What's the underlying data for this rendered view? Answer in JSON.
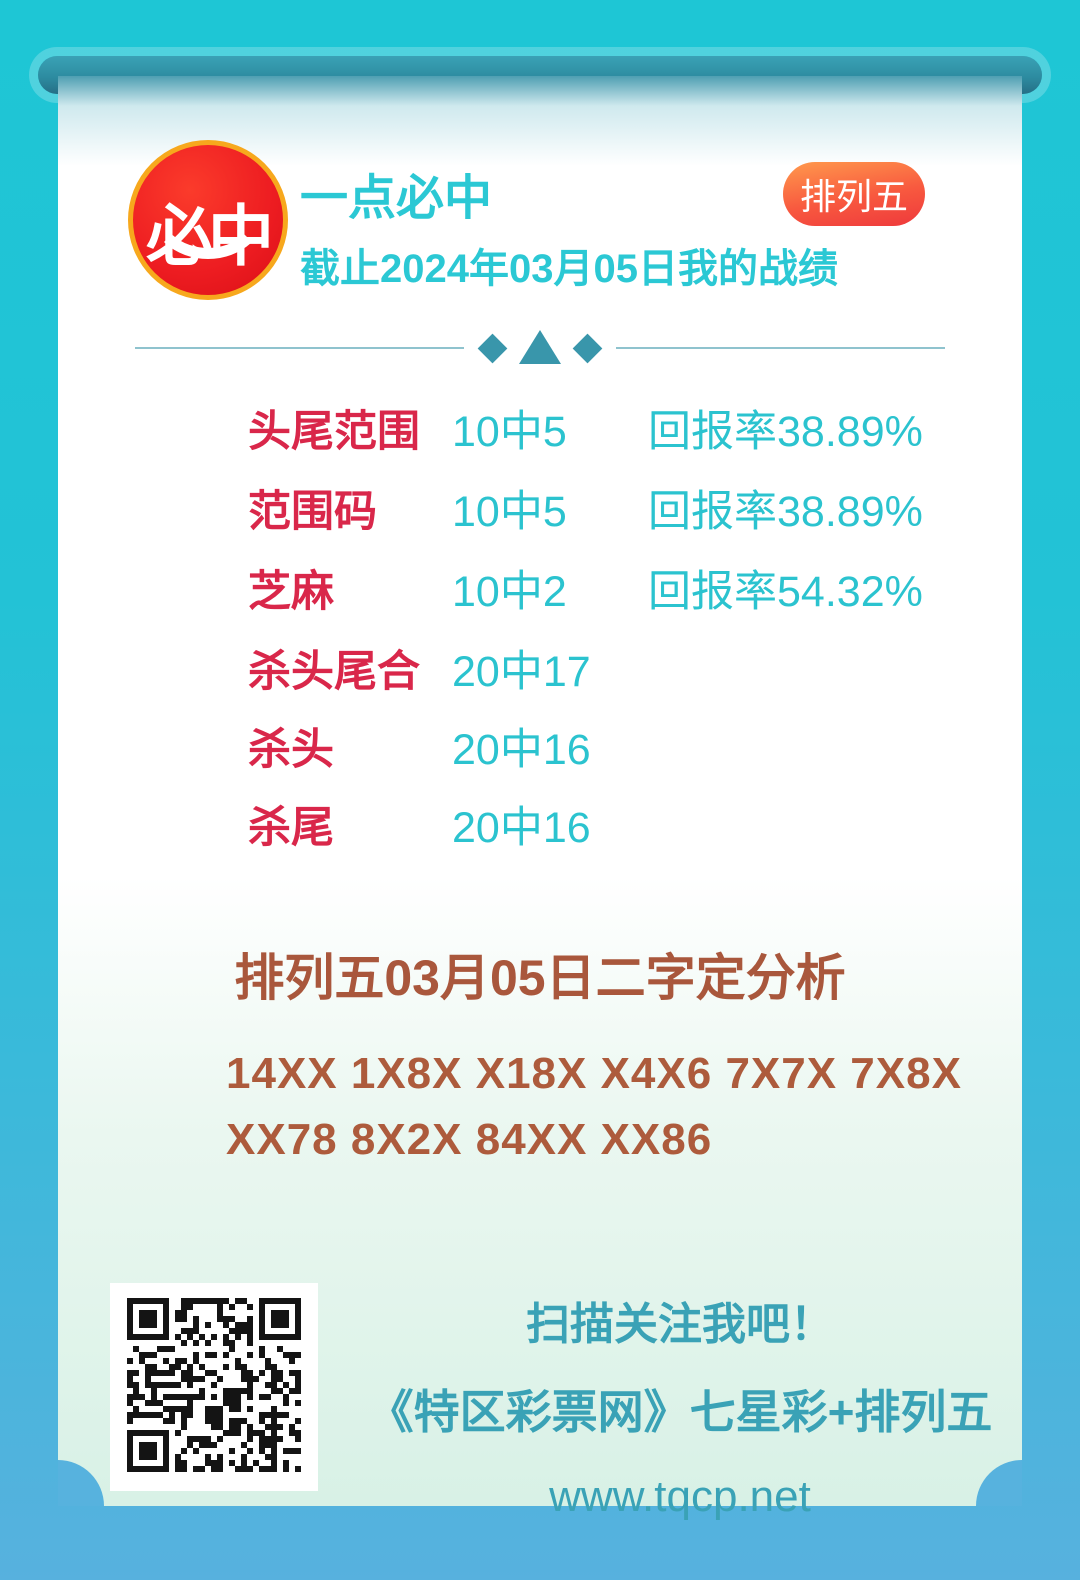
{
  "header": {
    "logo_text": "必中",
    "title": "一点必中",
    "subtitle": "截止2024年03月05日我的战绩",
    "badge": "排列五"
  },
  "stats": {
    "rows": [
      {
        "label": "头尾范围",
        "score": "10中5",
        "rate": "回报率38.89%"
      },
      {
        "label": "范围码",
        "score": "10中5",
        "rate": "回报率38.89%"
      },
      {
        "label": "芝麻",
        "score": "10中2",
        "rate": "回报率54.32%"
      },
      {
        "label": "杀头尾合",
        "score": "20中17",
        "rate": ""
      },
      {
        "label": "杀头",
        "score": "20中16",
        "rate": ""
      },
      {
        "label": "杀尾",
        "score": "20中16",
        "rate": ""
      }
    ]
  },
  "analysis": {
    "title": "排列五03月05日二字定分析",
    "line1": "14XX 1X8X X18X X4X6 7X7X 7X8X",
    "line2": "XX78 8X2X 84XX XX86"
  },
  "footer": {
    "scan_text": "扫描关注我吧！",
    "site_name": "《特区彩票网》七星彩+排列五",
    "url": "www.tqcp.net"
  },
  "icons": {
    "qr_code": "qr-code",
    "logo_badge": "red-circle-bag-logo",
    "divider_ornament": "diamond-triangle-diamond"
  },
  "colors": {
    "background_top": "#1ec6d5",
    "background_bottom": "#57b1de",
    "rod_teal": "#2d8ca1",
    "card_top": "#ffffff",
    "card_bottom": "#d8f1e6",
    "title_teal": "#2bc8d4",
    "value_teal": "#2bc3cf",
    "label_red": "#d9274a",
    "badge_gradient_start": "#ff9a4d",
    "badge_gradient_end": "#ee393c",
    "logo_red": "#ed1c21",
    "logo_rim_gold": "#f7a81d",
    "analysis_brown": "#ad5b3c",
    "footer_teal": "#3aa2b6"
  }
}
